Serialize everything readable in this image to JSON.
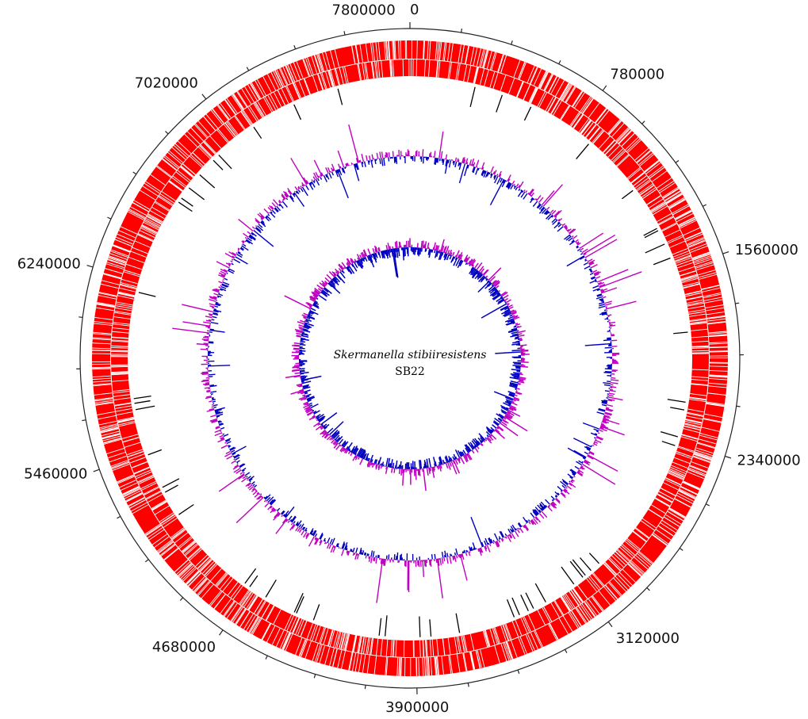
{
  "genome": {
    "name": "Skermanella stibiiresistens",
    "strain": "SB22"
  },
  "scale": {
    "labels": [
      "0",
      "780000",
      "1560000",
      "2340000",
      "3120000",
      "3900000",
      "4680000",
      "5460000",
      "6240000",
      "7020000",
      "7800000"
    ]
  },
  "tracks": {
    "cds_color": "#ff0000",
    "rna_color": "#000000",
    "gc_content_colors": {
      "above": "#c000c0",
      "below": "#0000c0"
    },
    "gc_skew_colors": {
      "positive": "#c000c0",
      "negative": "#0000c0"
    }
  }
}
